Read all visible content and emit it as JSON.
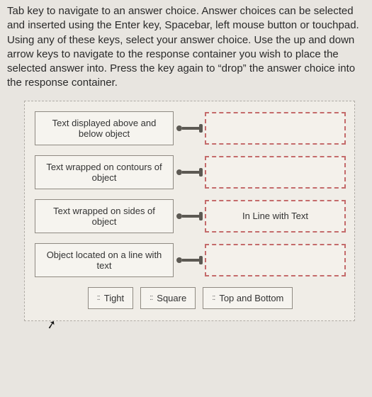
{
  "instructions": "Tab key to navigate to an answer choice. Answer choices can be selected and inserted using the Enter key, Spacebar, left mouse button or touchpad. Using any of these keys, select your answer choice. Use the up and down arrow keys to navigate to the response container you wish to place the selected answer into. Press the key again to “drop” the answer choice into the response container.",
  "rows": [
    {
      "label": "Text displayed above and below object",
      "dropped": ""
    },
    {
      "label": "Text wrapped on contours of object",
      "dropped": ""
    },
    {
      "label": "Text wrapped on sides of object",
      "dropped": "In Line with Text"
    },
    {
      "label": "Object located on a line with text",
      "dropped": ""
    }
  ],
  "choices": [
    {
      "label": "Tight"
    },
    {
      "label": "Square"
    },
    {
      "label": "Top and Bottom"
    }
  ],
  "colors": {
    "page_bg": "#e8e5e0",
    "panel_bg": "#f0ede7",
    "box_bg": "#f6f4ef",
    "box_border": "#8f8a82",
    "drop_border": "#c46b6b",
    "connector": "#5c5953"
  }
}
